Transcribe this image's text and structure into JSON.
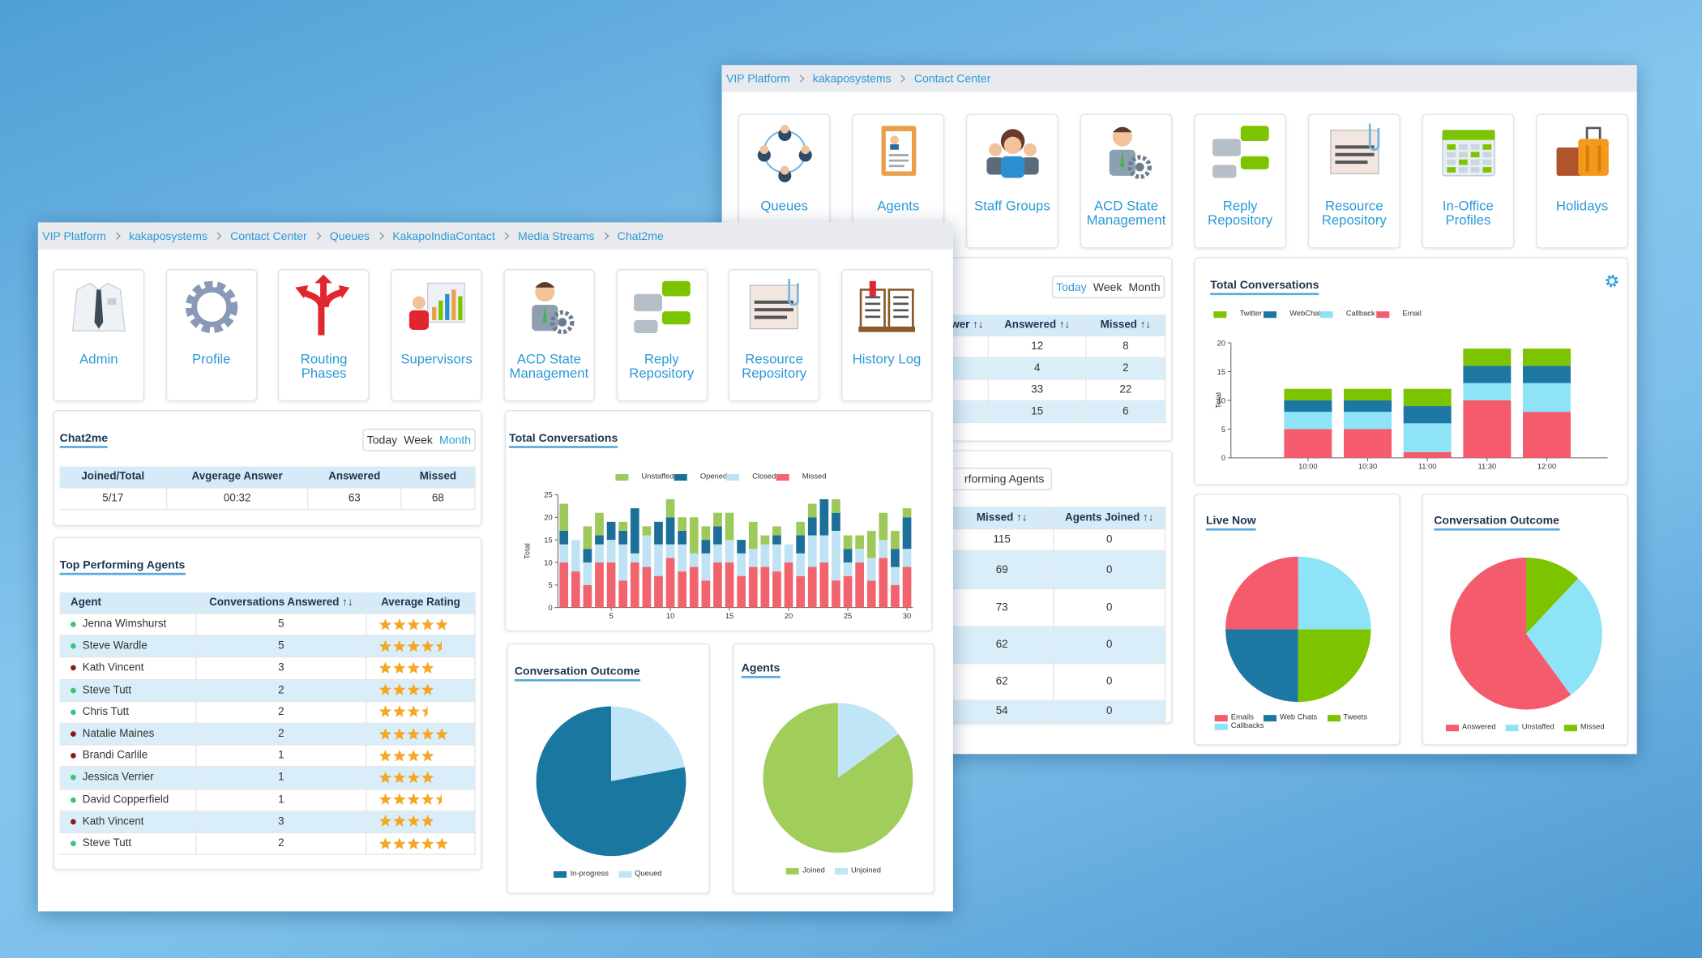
{
  "back": {
    "breadcrumb": [
      "VIP Platform",
      "kakaposystems",
      "Contact Center"
    ],
    "tiles": [
      "Queues",
      "Agents",
      "Staff Groups",
      "ACD State Management",
      "Reply Repository",
      "Resource Repository",
      "In-Office Profiles",
      "Holidays"
    ],
    "summary": {
      "periods": [
        "Today",
        "Week",
        "Month"
      ],
      "selected_period": 0,
      "columns": [
        "wer ↑↓",
        "Answered ↑↓",
        "Missed ↑↓"
      ],
      "rows": [
        [
          12,
          8
        ],
        [
          4,
          2
        ],
        [
          33,
          22
        ],
        [
          15,
          6
        ]
      ]
    },
    "agents": {
      "button": "rforming Agents",
      "columns": [
        "Missed ↑↓",
        "Agents Joined ↑↓"
      ],
      "rows": [
        [
          115,
          0
        ],
        [
          69,
          0
        ],
        [
          73,
          0
        ],
        [
          62,
          0
        ],
        [
          62,
          0
        ],
        [
          54,
          0
        ]
      ]
    },
    "total_conversations": {
      "type": "bar",
      "stacked": true,
      "title": "Total Conversations",
      "y_label": "Total",
      "categories": [
        "10:00",
        "10:30",
        "11:00",
        "11:30",
        "12:00"
      ],
      "series": [
        {
          "name": "Twitter",
          "color": "#7cc400",
          "values": [
            2,
            2,
            3,
            3,
            3
          ]
        },
        {
          "name": "WebChat",
          "color": "#1c77a3",
          "values": [
            2,
            2,
            3,
            3,
            3
          ]
        },
        {
          "name": "Callback",
          "color": "#8ee3f7",
          "values": [
            3,
            3,
            5,
            3,
            5
          ]
        },
        {
          "name": "Email",
          "color": "#f45b6c",
          "values": [
            5,
            5,
            1,
            10,
            8
          ]
        }
      ],
      "ylim": [
        0,
        20
      ],
      "yticks": [
        0,
        5,
        10,
        15,
        20
      ]
    },
    "live_now": {
      "type": "pie",
      "title": "Live Now",
      "categories": [
        "Emails",
        "Web Chats",
        "Tweets",
        "Callbacks"
      ],
      "values": [
        25,
        25,
        25,
        25
      ],
      "colors": [
        "#f45b6c",
        "#1c77a3",
        "#7cc400",
        "#8ee3f7"
      ]
    },
    "conversation_outcome": {
      "type": "pie",
      "title": "Conversation Outcome",
      "categories": [
        "Answered",
        "Unstaffed",
        "Missed"
      ],
      "values": [
        60,
        28,
        12
      ],
      "colors": [
        "#f45b6c",
        "#8ee3f7",
        "#7cc400"
      ]
    }
  },
  "front": {
    "breadcrumb": [
      "VIP Platform",
      "kakaposystems",
      "Contact Center",
      "Queues",
      "KakapoIndiaContact",
      "Media Streams",
      "Chat2me"
    ],
    "tiles": [
      "Admin",
      "Profile",
      "Routing Phases",
      "Supervisors",
      "ACD State Management",
      "Reply Repository",
      "Resource Repository",
      "History Log"
    ],
    "chat2me": {
      "title": "Chat2me",
      "periods": [
        "Today",
        "Week",
        "Month"
      ],
      "selected_period": 2,
      "columns": [
        "Joined/Total",
        "Avgerage Answer",
        "Answered",
        "Missed"
      ],
      "row": [
        "5/17",
        "00:32",
        63,
        68
      ]
    },
    "top_agents": {
      "title": "Top Performing Agents",
      "columns": [
        "Agent",
        "Conversations Answered  ↑↓",
        "Average Rating"
      ],
      "rows": [
        {
          "name": "Jenna Wimshurst",
          "status_color": "#3cc47c",
          "answered": 5,
          "rating": 5
        },
        {
          "name": "Steve Wardle",
          "status_color": "#3cc47c",
          "answered": 5,
          "rating": 4.5
        },
        {
          "name": "Kath Vincent",
          "status_color": "#8b1a1a",
          "answered": 3,
          "rating": 4
        },
        {
          "name": "Steve Tutt",
          "status_color": "#3cc47c",
          "answered": 2,
          "rating": 4
        },
        {
          "name": "Chris Tutt",
          "status_color": "#3cc47c",
          "answered": 2,
          "rating": 3.5
        },
        {
          "name": "Natalie Maines",
          "status_color": "#8b1a1a",
          "answered": 2,
          "rating": 5
        },
        {
          "name": "Brandi Carlile",
          "status_color": "#8b1a1a",
          "answered": 1,
          "rating": 4
        },
        {
          "name": "Jessica Verrier",
          "status_color": "#3cc47c",
          "answered": 1,
          "rating": 4
        },
        {
          "name": "David Copperfield",
          "status_color": "#3cc47c",
          "answered": 1,
          "rating": 4.5
        },
        {
          "name": "Kath Vincent",
          "status_color": "#8b1a1a",
          "answered": 3,
          "rating": 4
        },
        {
          "name": "Steve Tutt",
          "status_color": "#3cc47c",
          "answered": 2,
          "rating": 5
        }
      ]
    },
    "total_conversations": {
      "type": "bar",
      "stacked": true,
      "title": "Total Conversations",
      "y_label": "Total",
      "x": [
        1,
        2,
        3,
        4,
        5,
        6,
        7,
        8,
        9,
        10,
        11,
        12,
        13,
        14,
        15,
        16,
        17,
        18,
        19,
        20,
        21,
        22,
        23,
        24,
        25,
        26,
        27,
        28,
        29,
        30
      ],
      "series": [
        {
          "name": "Unstaffed",
          "color": "#9dc95b",
          "values": [
            6,
            0,
            5,
            5,
            0,
            2,
            0,
            2,
            0,
            4,
            3,
            8,
            3,
            3,
            6,
            0,
            6,
            2,
            2,
            0,
            3,
            3,
            0,
            3,
            3,
            3,
            6,
            6,
            4,
            2
          ]
        },
        {
          "name": "Opened",
          "color": "#1c6f99",
          "values": [
            3,
            0,
            3,
            2,
            4,
            3,
            10,
            0,
            5,
            6,
            3,
            0,
            3,
            4,
            0,
            3,
            0,
            0,
            2,
            0,
            4,
            4,
            8,
            4,
            3,
            0,
            0,
            0,
            4,
            7
          ]
        },
        {
          "name": "Closed",
          "color": "#bfe3f5",
          "values": [
            4,
            7,
            5,
            4,
            5,
            8,
            2,
            7,
            7,
            3,
            6,
            3,
            6,
            4,
            5,
            5,
            4,
            5,
            6,
            4,
            5,
            7,
            6,
            11,
            3,
            3,
            5,
            4,
            4,
            4
          ]
        },
        {
          "name": "Missed",
          "color": "#f1646d",
          "values": [
            10,
            8,
            5,
            10,
            10,
            6,
            10,
            9,
            7,
            11,
            8,
            9,
            6,
            10,
            10,
            7,
            9,
            9,
            8,
            10,
            7,
            9,
            10,
            6,
            7,
            10,
            6,
            11,
            5,
            9
          ]
        }
      ],
      "xlim": [
        0.5,
        30.5
      ],
      "xticks": [
        5,
        10,
        15,
        20,
        25,
        30
      ],
      "ylim": [
        0,
        25
      ],
      "yticks": [
        0,
        5,
        10,
        15,
        20,
        25
      ]
    },
    "conversation_outcome": {
      "type": "pie",
      "title": "Conversation Outcome",
      "categories": [
        "In-progress",
        "Queued"
      ],
      "values": [
        78,
        22
      ],
      "colors": [
        "#1a77a0",
        "#c0e5f6"
      ]
    },
    "agents_pie": {
      "type": "pie",
      "title": "Agents",
      "categories": [
        "Joined",
        "Unjoined"
      ],
      "values": [
        85,
        15
      ],
      "colors": [
        "#a1cd5a",
        "#c0e5f6"
      ]
    }
  }
}
